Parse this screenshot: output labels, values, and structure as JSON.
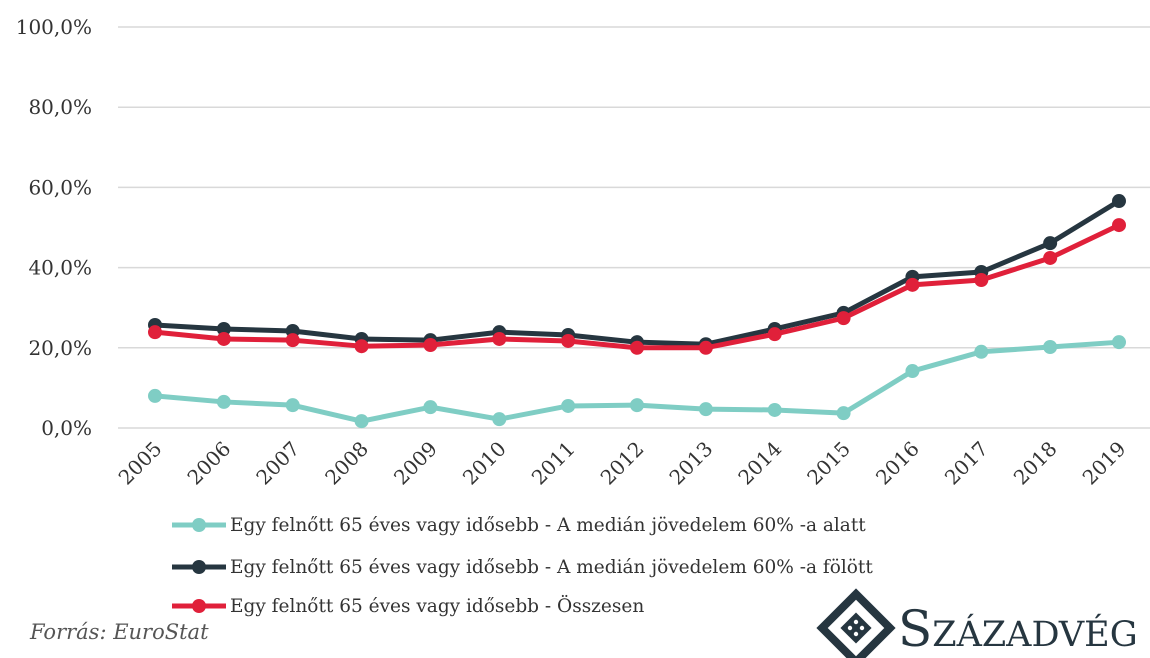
{
  "chart_data": {
    "type": "line",
    "categories": [
      "2005",
      "2006",
      "2007",
      "2008",
      "2009",
      "2010",
      "2011",
      "2012",
      "2013",
      "2014",
      "2015",
      "2016",
      "2017",
      "2018",
      "2019"
    ],
    "series": [
      {
        "name": "Egy felnőtt 65 éves vagy idősebb - A medián jövedelem 60% -a alatt",
        "color": "#7fcdc4",
        "values": [
          8.0,
          6.5,
          5.7,
          1.7,
          5.2,
          2.2,
          5.5,
          5.7,
          4.7,
          4.5,
          3.7,
          14.2,
          19.0,
          20.2,
          21.4
        ]
      },
      {
        "name": "Egy felnőtt 65 éves vagy idősebb - A medián jövedelem 60% -a fölött",
        "color": "#263640",
        "values": [
          25.7,
          24.7,
          24.2,
          22.2,
          21.9,
          23.9,
          23.2,
          21.4,
          20.9,
          24.7,
          28.7,
          37.7,
          38.9,
          46.1,
          56.6
        ]
      },
      {
        "name": "Egy felnőtt 65 éves vagy idősebb - Összesen",
        "color": "#e0203a",
        "values": [
          23.9,
          22.2,
          21.9,
          20.4,
          20.7,
          22.2,
          21.7,
          20.0,
          20.0,
          23.4,
          27.4,
          35.7,
          36.9,
          42.4,
          50.6
        ]
      }
    ],
    "ylim": [
      0,
      100
    ],
    "yticks": [
      {
        "value": 0,
        "label": "0,0%"
      },
      {
        "value": 20,
        "label": "20,0%"
      },
      {
        "value": 40,
        "label": "40,0%"
      },
      {
        "value": 60,
        "label": "60,0%"
      },
      {
        "value": 80,
        "label": "80,0%"
      },
      {
        "value": 100,
        "label": "100,0%"
      }
    ],
    "grid": true,
    "source": "Forrás: EuroStat",
    "logo": "Századvég"
  }
}
